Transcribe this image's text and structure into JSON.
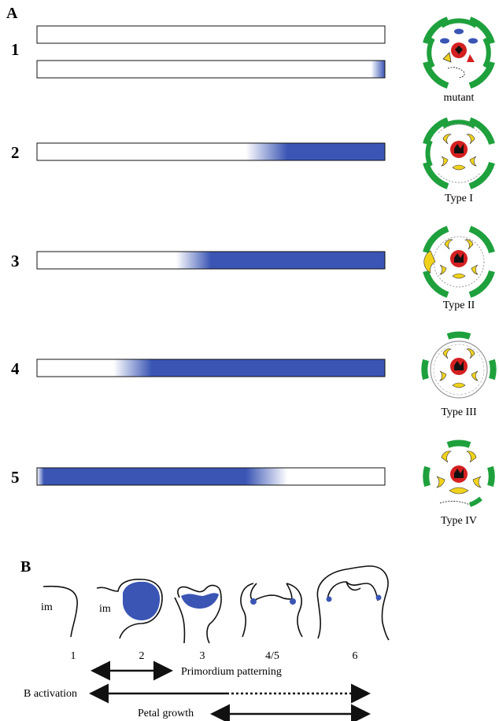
{
  "panel_a": {
    "label": "A",
    "rows": [
      {
        "number": "1",
        "caption": "mutant",
        "expression_from": 0.97,
        "expression_direction": "right"
      },
      {
        "number": "2",
        "caption": "Type I",
        "expression_from": 0.62,
        "expression_direction": "right"
      },
      {
        "number": "3",
        "caption": "Type II",
        "expression_from": 0.41,
        "expression_direction": "right"
      },
      {
        "number": "4",
        "caption": "Type III",
        "expression_from": 0.24,
        "expression_direction": "right"
      },
      {
        "number": "5",
        "caption": "Type IV",
        "expression_from": 0.7,
        "expression_direction": "left"
      }
    ]
  },
  "panel_b": {
    "label": "B",
    "im_labels": [
      "im",
      "im"
    ],
    "stages": [
      "1",
      "2",
      "3",
      "4/5",
      "6"
    ],
    "arrows": [
      {
        "label": "Primordium patterning"
      },
      {
        "label": "B activation"
      },
      {
        "label": "Petal growth"
      }
    ]
  },
  "colors": {
    "expression": "#3a55b4",
    "sepal": "#1ea03c",
    "petal": "#f0d21c",
    "carpel": "#d42020",
    "bar_outline": "#111111"
  }
}
